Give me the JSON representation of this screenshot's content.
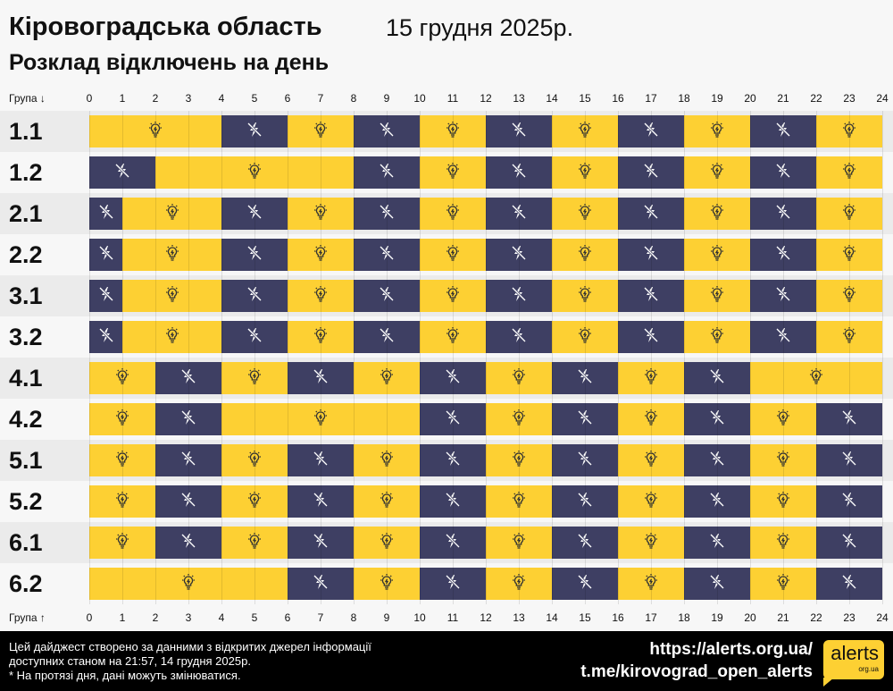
{
  "header": {
    "title": "Кіровоградська область",
    "date": "15 грудня 2025р.",
    "subtitle": "Розклад відключень на день"
  },
  "axis": {
    "top_label": "Група ↓",
    "bottom_label": "Група ↑",
    "ticks": [
      "0",
      "1",
      "2",
      "3",
      "4",
      "5",
      "6",
      "7",
      "8",
      "9",
      "10",
      "11",
      "12",
      "13",
      "14",
      "15",
      "16",
      "17",
      "18",
      "19",
      "20",
      "21",
      "22",
      "23",
      "24"
    ]
  },
  "colors": {
    "power_on": "#fdd033",
    "power_off": "#3e3f63"
  },
  "icons": {
    "on": "lightbulb-icon",
    "off": "power-off-icon"
  },
  "groups": [
    {
      "name": "1.1",
      "segments": [
        [
          0,
          4,
          "on"
        ],
        [
          4,
          6,
          "off"
        ],
        [
          6,
          8,
          "on"
        ],
        [
          8,
          10,
          "off"
        ],
        [
          10,
          12,
          "on"
        ],
        [
          12,
          14,
          "off"
        ],
        [
          14,
          16,
          "on"
        ],
        [
          16,
          18,
          "off"
        ],
        [
          18,
          20,
          "on"
        ],
        [
          20,
          22,
          "off"
        ],
        [
          22,
          24,
          "on"
        ]
      ]
    },
    {
      "name": "1.2",
      "segments": [
        [
          0,
          2,
          "off"
        ],
        [
          2,
          8,
          "on"
        ],
        [
          8,
          10,
          "off"
        ],
        [
          10,
          12,
          "on"
        ],
        [
          12,
          14,
          "off"
        ],
        [
          14,
          16,
          "on"
        ],
        [
          16,
          18,
          "off"
        ],
        [
          18,
          20,
          "on"
        ],
        [
          20,
          22,
          "off"
        ],
        [
          22,
          24,
          "on"
        ]
      ]
    },
    {
      "name": "2.1",
      "segments": [
        [
          0,
          1,
          "off"
        ],
        [
          1,
          4,
          "on"
        ],
        [
          4,
          6,
          "off"
        ],
        [
          6,
          8,
          "on"
        ],
        [
          8,
          10,
          "off"
        ],
        [
          10,
          12,
          "on"
        ],
        [
          12,
          14,
          "off"
        ],
        [
          14,
          16,
          "on"
        ],
        [
          16,
          18,
          "off"
        ],
        [
          18,
          20,
          "on"
        ],
        [
          20,
          22,
          "off"
        ],
        [
          22,
          24,
          "on"
        ]
      ]
    },
    {
      "name": "2.2",
      "segments": [
        [
          0,
          1,
          "off"
        ],
        [
          1,
          4,
          "on"
        ],
        [
          4,
          6,
          "off"
        ],
        [
          6,
          8,
          "on"
        ],
        [
          8,
          10,
          "off"
        ],
        [
          10,
          12,
          "on"
        ],
        [
          12,
          14,
          "off"
        ],
        [
          14,
          16,
          "on"
        ],
        [
          16,
          18,
          "off"
        ],
        [
          18,
          20,
          "on"
        ],
        [
          20,
          22,
          "off"
        ],
        [
          22,
          24,
          "on"
        ]
      ]
    },
    {
      "name": "3.1",
      "segments": [
        [
          0,
          1,
          "off"
        ],
        [
          1,
          4,
          "on"
        ],
        [
          4,
          6,
          "off"
        ],
        [
          6,
          8,
          "on"
        ],
        [
          8,
          10,
          "off"
        ],
        [
          10,
          12,
          "on"
        ],
        [
          12,
          14,
          "off"
        ],
        [
          14,
          16,
          "on"
        ],
        [
          16,
          18,
          "off"
        ],
        [
          18,
          20,
          "on"
        ],
        [
          20,
          22,
          "off"
        ],
        [
          22,
          24,
          "on"
        ]
      ]
    },
    {
      "name": "3.2",
      "segments": [
        [
          0,
          1,
          "off"
        ],
        [
          1,
          4,
          "on"
        ],
        [
          4,
          6,
          "off"
        ],
        [
          6,
          8,
          "on"
        ],
        [
          8,
          10,
          "off"
        ],
        [
          10,
          12,
          "on"
        ],
        [
          12,
          14,
          "off"
        ],
        [
          14,
          16,
          "on"
        ],
        [
          16,
          18,
          "off"
        ],
        [
          18,
          20,
          "on"
        ],
        [
          20,
          22,
          "off"
        ],
        [
          22,
          24,
          "on"
        ]
      ]
    },
    {
      "name": "4.1",
      "segments": [
        [
          0,
          2,
          "on"
        ],
        [
          2,
          4,
          "off"
        ],
        [
          4,
          6,
          "on"
        ],
        [
          6,
          8,
          "off"
        ],
        [
          8,
          10,
          "on"
        ],
        [
          10,
          12,
          "off"
        ],
        [
          12,
          14,
          "on"
        ],
        [
          14,
          16,
          "off"
        ],
        [
          16,
          18,
          "on"
        ],
        [
          18,
          20,
          "off"
        ],
        [
          20,
          24,
          "on"
        ]
      ]
    },
    {
      "name": "4.2",
      "segments": [
        [
          0,
          2,
          "on"
        ],
        [
          2,
          4,
          "off"
        ],
        [
          4,
          10,
          "on"
        ],
        [
          10,
          12,
          "off"
        ],
        [
          12,
          14,
          "on"
        ],
        [
          14,
          16,
          "off"
        ],
        [
          16,
          18,
          "on"
        ],
        [
          18,
          20,
          "off"
        ],
        [
          20,
          22,
          "on"
        ],
        [
          22,
          24,
          "off"
        ]
      ]
    },
    {
      "name": "5.1",
      "segments": [
        [
          0,
          2,
          "on"
        ],
        [
          2,
          4,
          "off"
        ],
        [
          4,
          6,
          "on"
        ],
        [
          6,
          8,
          "off"
        ],
        [
          8,
          10,
          "on"
        ],
        [
          10,
          12,
          "off"
        ],
        [
          12,
          14,
          "on"
        ],
        [
          14,
          16,
          "off"
        ],
        [
          16,
          18,
          "on"
        ],
        [
          18,
          20,
          "off"
        ],
        [
          20,
          22,
          "on"
        ],
        [
          22,
          24,
          "off"
        ]
      ]
    },
    {
      "name": "5.2",
      "segments": [
        [
          0,
          2,
          "on"
        ],
        [
          2,
          4,
          "off"
        ],
        [
          4,
          6,
          "on"
        ],
        [
          6,
          8,
          "off"
        ],
        [
          8,
          10,
          "on"
        ],
        [
          10,
          12,
          "off"
        ],
        [
          12,
          14,
          "on"
        ],
        [
          14,
          16,
          "off"
        ],
        [
          16,
          18,
          "on"
        ],
        [
          18,
          20,
          "off"
        ],
        [
          20,
          22,
          "on"
        ],
        [
          22,
          24,
          "off"
        ]
      ]
    },
    {
      "name": "6.1",
      "segments": [
        [
          0,
          2,
          "on"
        ],
        [
          2,
          4,
          "off"
        ],
        [
          4,
          6,
          "on"
        ],
        [
          6,
          8,
          "off"
        ],
        [
          8,
          10,
          "on"
        ],
        [
          10,
          12,
          "off"
        ],
        [
          12,
          14,
          "on"
        ],
        [
          14,
          16,
          "off"
        ],
        [
          16,
          18,
          "on"
        ],
        [
          18,
          20,
          "off"
        ],
        [
          20,
          22,
          "on"
        ],
        [
          22,
          24,
          "off"
        ]
      ]
    },
    {
      "name": "6.2",
      "segments": [
        [
          0,
          6,
          "on"
        ],
        [
          6,
          8,
          "off"
        ],
        [
          8,
          10,
          "on"
        ],
        [
          10,
          12,
          "off"
        ],
        [
          12,
          14,
          "on"
        ],
        [
          14,
          16,
          "off"
        ],
        [
          16,
          18,
          "on"
        ],
        [
          18,
          20,
          "off"
        ],
        [
          20,
          22,
          "on"
        ],
        [
          22,
          24,
          "off"
        ]
      ]
    }
  ],
  "footer": {
    "line1": "Цей дайджест створено за данними з відкритих джерел інформації",
    "line2": "доступних станом на 21:57, 14 грудня 2025р.",
    "line3": "* На протязі дня, дані можуть змінюватися.",
    "link1": "https://alerts.org.ua/",
    "link2": "t.me/kirovograd_open_alerts",
    "logo_text": "alerts",
    "logo_sub": "org.ua"
  }
}
